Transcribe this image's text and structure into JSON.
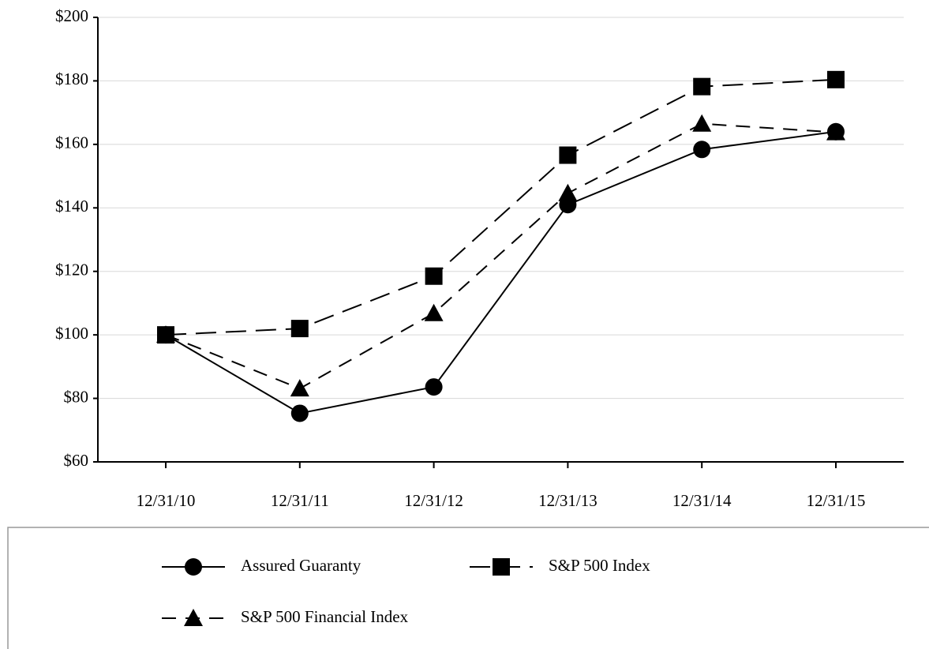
{
  "chart_data": {
    "type": "line",
    "categories": [
      "12/31/10",
      "12/31/11",
      "12/31/12",
      "12/31/13",
      "12/31/14",
      "12/31/15"
    ],
    "series": [
      {
        "name": "Assured Guaranty",
        "color": "#000000",
        "dash": "solid",
        "marker": "circle",
        "values": [
          100,
          75.3,
          83.6,
          141,
          158.4,
          164
        ]
      },
      {
        "name": "S&P 500 Index",
        "color": "#000000",
        "dash": "long",
        "marker": "square",
        "values": [
          100,
          102,
          118.5,
          156.6,
          178.2,
          180.4
        ]
      },
      {
        "name": "S&P 500 Financial Index",
        "color": "#000000",
        "dash": "short",
        "marker": "triangle",
        "values": [
          100,
          83.1,
          106.8,
          144.6,
          166.5,
          163.8
        ]
      }
    ],
    "ylim": [
      60,
      200
    ],
    "yticks": [
      {
        "value": 60,
        "label": "$60"
      },
      {
        "value": 80,
        "label": "$80"
      },
      {
        "value": 100,
        "label": "$100"
      },
      {
        "value": 120,
        "label": "$120"
      },
      {
        "value": 140,
        "label": "$140"
      },
      {
        "value": 160,
        "label": "$160"
      },
      {
        "value": 180,
        "label": "$180"
      },
      {
        "value": 200,
        "label": "$200"
      }
    ],
    "grid": true,
    "legend": "bottom"
  }
}
